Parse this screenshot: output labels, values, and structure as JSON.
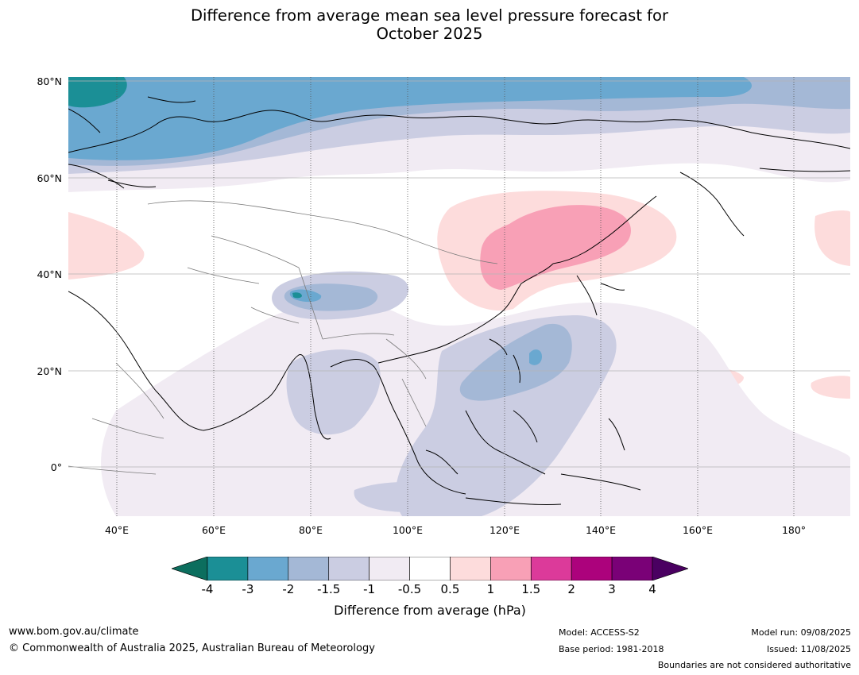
{
  "title": {
    "line1": "Difference from average mean sea level pressure forecast for",
    "line2": "October 2025"
  },
  "map": {
    "projection": "equirectangular",
    "lon_range": [
      30,
      191
    ],
    "lat_range": [
      -10,
      81
    ],
    "lat_labels": [
      "80°N",
      "60°N",
      "40°N",
      "20°N",
      "0°"
    ],
    "lon_labels": [
      "40°E",
      "60°E",
      "80°E",
      "100°E",
      "120°E",
      "140°E",
      "160°E",
      "180°"
    ],
    "anomaly_regions": [
      {
        "name": "arctic-negative-weak",
        "value": -1
      },
      {
        "name": "arctic-negative-mid",
        "value": -1.5
      },
      {
        "name": "arctic-negative-strong",
        "value": -2
      },
      {
        "name": "arctic-negative-stronger",
        "value": -3
      },
      {
        "name": "arctic-negative-strongest",
        "value": -4
      },
      {
        "name": "manchuria-positive-weak",
        "value": 1
      },
      {
        "name": "manchuria-positive-strong",
        "value": 1.5
      },
      {
        "name": "west-pacific-negative",
        "value": -1.5
      },
      {
        "name": "tibet-negative",
        "value": -2
      }
    ]
  },
  "colorbar": {
    "bounds": [
      "-4",
      "-3",
      "-2",
      "-1.5",
      "-1",
      "-0.5",
      "0.5",
      "1",
      "1.5",
      "2",
      "3",
      "4"
    ],
    "colors": [
      "#1b8f96",
      "#6aa8d0",
      "#a4b8d6",
      "#cbcde2",
      "#f1ebf3",
      "#ffffff",
      "#fddcdc",
      "#f8a0b6",
      "#dc3a9a",
      "#ac027c",
      "#7a0177"
    ],
    "under_color": "#0c6e5e",
    "over_color": "#4a0061",
    "label": "Difference from average (hPa)"
  },
  "footer": {
    "website": "www.bom.gov.au/climate",
    "copyright": "© Commonwealth of Australia 2025, Australian Bureau of Meteorology",
    "model": "Model: ACCESS-S2",
    "base_period": "Base period: 1981-2018",
    "model_run": "Model run: 09/08/2025",
    "issued": "Issued: 11/08/2025",
    "disclaimer": "Boundaries are not considered authoritative"
  }
}
